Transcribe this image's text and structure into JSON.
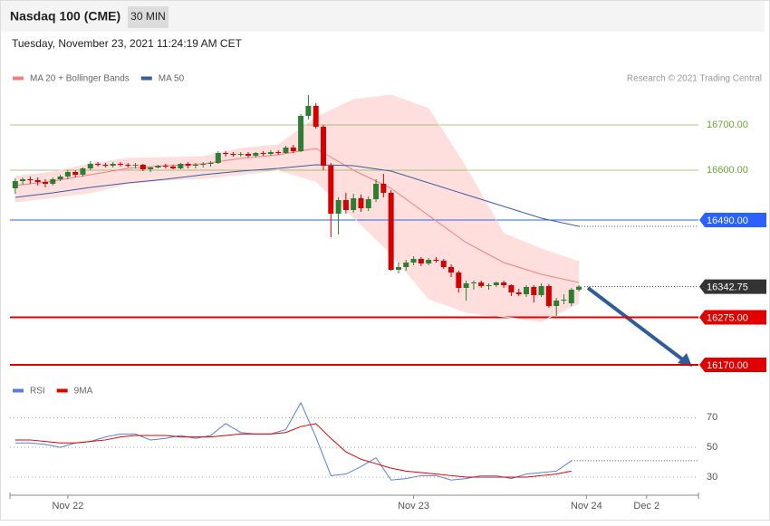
{
  "header": {
    "title": "Nasdaq 100 (CME)",
    "interval": "30 MIN",
    "timestamp": "Tuesday, November 23, 2021 11:24:19 AM CET",
    "credit": "Research © 2021 Trading Central"
  },
  "chart_data": [
    {
      "type": "candlestick",
      "up_color": "#2e7d32",
      "down_color": "#d40000",
      "xlim": [
        -0.7,
        90.9
      ],
      "ylim": [
        16146,
        16776
      ],
      "legend": "top-left",
      "ohlc": [
        [
          16560,
          16582,
          16548,
          16576
        ],
        [
          16576,
          16584,
          16568,
          16580
        ],
        [
          16580,
          16586,
          16570,
          16578
        ],
        [
          16578,
          16584,
          16566,
          16574
        ],
        [
          16574,
          16580,
          16562,
          16570
        ],
        [
          16570,
          16584,
          16566,
          16580
        ],
        [
          16580,
          16590,
          16576,
          16586
        ],
        [
          16586,
          16600,
          16580,
          16596
        ],
        [
          16596,
          16600,
          16584,
          16590
        ],
        [
          16590,
          16606,
          16586,
          16604
        ],
        [
          16604,
          16620,
          16600,
          16614
        ],
        [
          16614,
          16618,
          16608,
          16612
        ],
        [
          16612,
          16616,
          16606,
          16610
        ],
        [
          16610,
          16618,
          16606,
          16614
        ],
        [
          16614,
          16618,
          16608,
          16612
        ],
        [
          16612,
          16616,
          16606,
          16610
        ],
        [
          16610,
          16616,
          16604,
          16612
        ],
        [
          16612,
          16614,
          16598,
          16602
        ],
        [
          16602,
          16608,
          16596,
          16606
        ],
        [
          16606,
          16612,
          16604,
          16610
        ],
        [
          16610,
          16614,
          16604,
          16608
        ],
        [
          16608,
          16612,
          16602,
          16604
        ],
        [
          16604,
          16616,
          16602,
          16614
        ],
        [
          16614,
          16618,
          16604,
          16610
        ],
        [
          16610,
          16616,
          16604,
          16612
        ],
        [
          16612,
          16618,
          16606,
          16614
        ],
        [
          16614,
          16620,
          16608,
          16616
        ],
        [
          16616,
          16642,
          16614,
          16638
        ],
        [
          16638,
          16642,
          16630,
          16636
        ],
        [
          16636,
          16640,
          16630,
          16634
        ],
        [
          16634,
          16640,
          16630,
          16636
        ],
        [
          16636,
          16640,
          16628,
          16632
        ],
        [
          16632,
          16640,
          16628,
          16638
        ],
        [
          16638,
          16642,
          16632,
          16636
        ],
        [
          16636,
          16644,
          16632,
          16640
        ],
        [
          16640,
          16644,
          16634,
          16638
        ],
        [
          16638,
          16654,
          16636,
          16650
        ],
        [
          16650,
          16656,
          16638,
          16642
        ],
        [
          16642,
          16724,
          16640,
          16720
        ],
        [
          16720,
          16766,
          16712,
          16742
        ],
        [
          16742,
          16748,
          16692,
          16696
        ],
        [
          16696,
          16700,
          16600,
          16610
        ],
        [
          16610,
          16616,
          16452,
          16504
        ],
        [
          16504,
          16540,
          16458,
          16534
        ],
        [
          16534,
          16550,
          16504,
          16512
        ],
        [
          16512,
          16548,
          16506,
          16538
        ],
        [
          16538,
          16546,
          16508,
          16516
        ],
        [
          16516,
          16542,
          16510,
          16536
        ],
        [
          16536,
          16580,
          16530,
          16570
        ],
        [
          16570,
          16592,
          16540,
          16550
        ],
        [
          16550,
          16556,
          16378,
          16380
        ],
        [
          16380,
          16396,
          16372,
          16386
        ],
        [
          16386,
          16402,
          16378,
          16396
        ],
        [
          16396,
          16410,
          16390,
          16404
        ],
        [
          16404,
          16408,
          16388,
          16394
        ],
        [
          16394,
          16406,
          16390,
          16402
        ],
        [
          16402,
          16408,
          16396,
          16400
        ],
        [
          16400,
          16404,
          16382,
          16386
        ],
        [
          16386,
          16392,
          16364,
          16374
        ],
        [
          16374,
          16378,
          16330,
          16340
        ],
        [
          16340,
          16356,
          16312,
          16350
        ],
        [
          16350,
          16356,
          16336,
          16352
        ],
        [
          16352,
          16356,
          16340,
          16344
        ],
        [
          16344,
          16350,
          16336,
          16346
        ],
        [
          16346,
          16354,
          16342,
          16352
        ],
        [
          16352,
          16356,
          16340,
          16346
        ],
        [
          16346,
          16348,
          16322,
          16330
        ],
        [
          16330,
          16338,
          16322,
          16326
        ],
        [
          16326,
          16346,
          16320,
          16342
        ],
        [
          16342,
          16346,
          16308,
          16324
        ],
        [
          16324,
          16350,
          16320,
          16344
        ],
        [
          16344,
          16348,
          16296,
          16300
        ],
        [
          16300,
          16318,
          16278,
          16312
        ],
        [
          16312,
          16326,
          16304,
          16314
        ],
        [
          16306,
          16340,
          16300,
          16336
        ],
        [
          16336,
          16346,
          16332,
          16342.75
        ]
      ],
      "overlays": [
        {
          "name": "MA 20 + Bollinger Bands",
          "color": "#f08080",
          "band_color": "#ffdede",
          "x": [
            0,
            5,
            10,
            15,
            20,
            25,
            30,
            35,
            40,
            45,
            50,
            55,
            60,
            65,
            70,
            75
          ],
          "values": [
            16566,
            16576,
            16590,
            16604,
            16610,
            16614,
            16626,
            16634,
            16648,
            16600,
            16560,
            16500,
            16440,
            16396,
            16370,
            16352
          ],
          "upper": [
            16586,
            16596,
            16614,
            16626,
            16628,
            16630,
            16648,
            16656,
            16716,
            16756,
            16766,
            16736,
            16606,
            16460,
            16426,
            16398
          ],
          "lower": [
            16530,
            16540,
            16550,
            16570,
            16578,
            16582,
            16590,
            16600,
            16576,
            16496,
            16416,
            16316,
            16286,
            16276,
            16266,
            16306
          ]
        },
        {
          "name": "MA 50",
          "color": "#3a5f9e",
          "x": [
            0,
            5,
            10,
            15,
            20,
            25,
            30,
            35,
            40,
            45,
            50,
            55,
            60,
            65,
            70,
            75
          ],
          "values": [
            16540,
            16550,
            16562,
            16572,
            16580,
            16590,
            16598,
            16604,
            16612,
            16610,
            16598,
            16572,
            16546,
            16520,
            16494,
            16476
          ]
        }
      ],
      "levels": [
        {
          "value": 16700,
          "label": "16700.00",
          "color": "#6aa832",
          "line": "solid",
          "box": false
        },
        {
          "value": 16600,
          "label": "16600.00",
          "color": "#6aa832",
          "line": "solid",
          "box": false
        },
        {
          "value": 16490,
          "label": "16490.00",
          "color": "#2962ff",
          "line": "solid",
          "box": true
        },
        {
          "value": 16342.75,
          "color": "#333333",
          "line": "dotted",
          "box": true
        },
        {
          "value": 16275,
          "label": "16275.00",
          "color": "#e00000",
          "line": "solid",
          "box": true
        },
        {
          "value": 16170,
          "label": "16170.00",
          "color": "#e00000",
          "line": "solid",
          "box": true
        }
      ]
    },
    {
      "type": "line",
      "xlim": [
        -0.7,
        90.9
      ],
      "ylim": [
        19,
        83
      ],
      "yticks": [
        30,
        50,
        70
      ],
      "xticks": [
        {
          "value": 7,
          "label": "Nov 22"
        },
        {
          "value": 53,
          "label": "Nov 23"
        },
        {
          "value": 76,
          "label": "Nov 24"
        },
        {
          "value": 84,
          "label": "Dec 2"
        }
      ],
      "x": [
        0,
        2,
        4,
        6,
        8,
        10,
        12,
        14,
        16,
        18,
        20,
        22,
        24,
        26,
        28,
        30,
        32,
        34,
        36,
        38,
        40,
        42,
        44,
        46,
        48,
        50,
        52,
        54,
        56,
        58,
        60,
        62,
        64,
        66,
        68,
        70,
        72,
        74
      ],
      "series": [
        {
          "name": "RSI",
          "color": "#5b7fd6",
          "values": [
            53,
            53,
            52,
            50,
            53,
            54,
            57,
            59,
            59,
            55,
            56,
            58,
            56,
            58,
            66,
            60,
            59,
            59,
            62,
            80,
            57,
            31,
            32,
            37,
            43,
            28,
            29,
            31,
            31,
            28,
            29,
            31,
            31,
            29,
            32,
            33,
            34,
            41
          ]
        },
        {
          "name": "9MA",
          "color": "#e00000",
          "values": [
            55,
            55,
            54,
            53,
            53,
            54,
            55,
            57,
            58,
            58,
            58,
            57,
            57,
            57,
            58,
            59,
            59,
            59,
            60,
            64,
            66,
            56,
            47,
            42,
            39,
            36,
            34,
            33,
            32,
            31,
            30,
            30,
            30,
            30,
            30,
            31,
            32,
            34
          ]
        }
      ]
    }
  ]
}
